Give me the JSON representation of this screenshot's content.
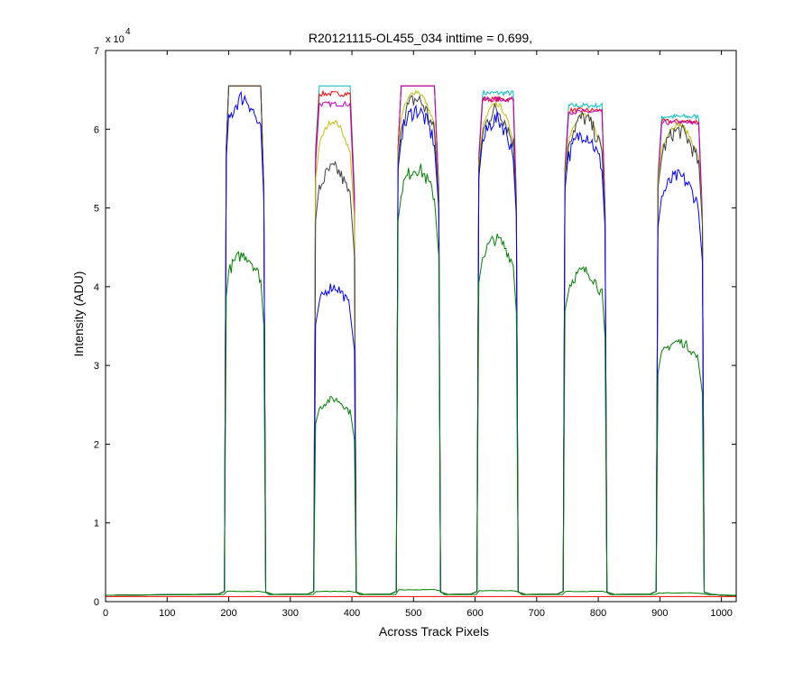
{
  "chart_data": {
    "type": "line",
    "title": "R20121115-OL455_034 inttime = 0.699,",
    "xlabel": "Across Track Pixels",
    "ylabel": "Intensity (ADU)",
    "xlim": [
      0,
      1024
    ],
    "ylim": [
      0,
      70000
    ],
    "x_ticks": [
      0,
      100,
      200,
      300,
      400,
      500,
      600,
      700,
      800,
      900,
      1000
    ],
    "y_ticks": [
      0,
      1,
      2,
      3,
      4,
      5,
      6,
      7
    ],
    "y_multiplier_base": "x 10",
    "y_multiplier_exponent": "4",
    "grid": false,
    "legend": "none",
    "baseline": 800,
    "plateaus": [
      {
        "rise": 195,
        "start": 200,
        "end": 252,
        "fall": 258
      },
      {
        "rise": 340,
        "start": 347,
        "end": 398,
        "fall": 405
      },
      {
        "rise": 474,
        "start": 480,
        "end": 535,
        "fall": 542
      },
      {
        "rise": 605,
        "start": 612,
        "end": 662,
        "fall": 668
      },
      {
        "rise": 745,
        "start": 752,
        "end": 806,
        "fall": 812
      },
      {
        "rise": 896,
        "start": 903,
        "end": 963,
        "fall": 970
      }
    ],
    "series": [
      {
        "color": "#00bfbf",
        "levels": [
          65500,
          65500,
          65500,
          64600,
          63000,
          61600
        ]
      },
      {
        "color": "#ff0000",
        "levels": [
          65500,
          64500,
          65500,
          63800,
          62400,
          61000
        ]
      },
      {
        "color": "#bf00bf",
        "levels": [
          65500,
          63200,
          65500,
          63800,
          62200,
          60800
        ]
      },
      {
        "color": "#bfbf00",
        "levels": [
          65500,
          61000,
          64800,
          63200,
          61900,
          60600
        ]
      },
      {
        "color": "#404040",
        "levels": [
          65500,
          55000,
          63800,
          62400,
          61400,
          59800
        ]
      },
      {
        "color": "#0000ff",
        "levels": [
          64000,
          40000,
          62400,
          61200,
          59400,
          54000
        ]
      },
      {
        "color": "#008000",
        "levels": [
          44000,
          25700,
          55000,
          46000,
          42000,
          33000
        ]
      }
    ],
    "low_green_levels": [
      1300,
      1300,
      1500,
      1400,
      1300,
      1100
    ]
  }
}
